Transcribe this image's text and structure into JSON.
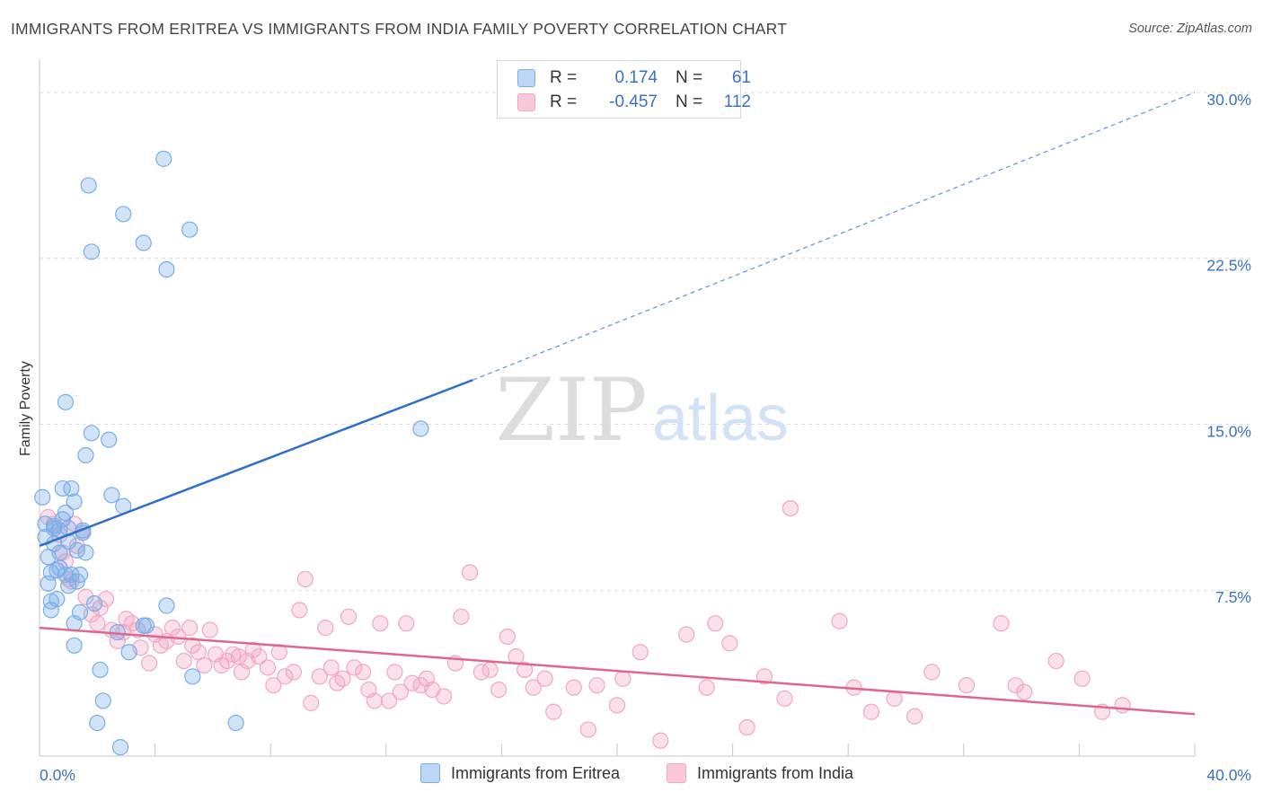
{
  "title": "IMMIGRANTS FROM ERITREA VS IMMIGRANTS FROM INDIA FAMILY POVERTY CORRELATION CHART",
  "source": "Source: ZipAtlas.com",
  "watermark": {
    "zip": "ZIP",
    "atlas": "atlas"
  },
  "legend_top": {
    "rows": [
      {
        "r_label": "R =",
        "r_value": "0.174",
        "n_label": "N =",
        "n_value": "61"
      },
      {
        "r_label": "R =",
        "r_value": "-0.457",
        "n_label": "N =",
        "n_value": "112"
      }
    ]
  },
  "chart_data": {
    "type": "scatter",
    "title": "IMMIGRANTS FROM ERITREA VS IMMIGRANTS FROM INDIA FAMILY POVERTY CORRELATION CHART",
    "xlabel": "",
    "ylabel": "Family Poverty",
    "xlim": [
      0,
      40
    ],
    "ylim": [
      0,
      31.5
    ],
    "x_tick_labels": [
      "0.0%",
      "40.0%"
    ],
    "y_ticks": [
      7.5,
      15.0,
      22.5,
      30.0
    ],
    "y_tick_labels": [
      "7.5%",
      "15.0%",
      "22.5%",
      "30.0%"
    ],
    "grid": true,
    "legend_position": "bottom",
    "series": [
      {
        "name": "Immigrants from Eritrea",
        "color": "#7aaee8",
        "line_color": "#2f6fc9",
        "r": 0.174,
        "n": 61,
        "trend": {
          "x0": 0,
          "y0": 9.5,
          "x_solid_end": 15.0,
          "y_solid_end": 17.0,
          "x1": 40,
          "y1": 30.0
        },
        "points": [
          [
            0.1,
            11.7
          ],
          [
            0.2,
            10.5
          ],
          [
            0.3,
            9.0
          ],
          [
            0.3,
            7.8
          ],
          [
            0.4,
            8.3
          ],
          [
            0.4,
            7.0
          ],
          [
            0.4,
            6.6
          ],
          [
            0.5,
            10.3
          ],
          [
            0.5,
            9.6
          ],
          [
            0.6,
            8.4
          ],
          [
            0.6,
            7.1
          ],
          [
            0.7,
            10.2
          ],
          [
            0.7,
            9.2
          ],
          [
            0.8,
            12.1
          ],
          [
            0.8,
            10.7
          ],
          [
            0.9,
            8.2
          ],
          [
            0.9,
            11.0
          ],
          [
            0.9,
            16.0
          ],
          [
            1.0,
            10.3
          ],
          [
            1.0,
            7.7
          ],
          [
            1.1,
            12.1
          ],
          [
            1.1,
            8.2
          ],
          [
            1.2,
            11.5
          ],
          [
            1.2,
            6.0
          ],
          [
            1.2,
            5.0
          ],
          [
            1.3,
            9.3
          ],
          [
            1.3,
            7.9
          ],
          [
            1.4,
            8.2
          ],
          [
            1.4,
            6.5
          ],
          [
            1.5,
            10.2
          ],
          [
            1.6,
            9.2
          ],
          [
            1.6,
            13.6
          ],
          [
            1.7,
            25.8
          ],
          [
            1.8,
            22.8
          ],
          [
            1.8,
            14.6
          ],
          [
            1.9,
            6.9
          ],
          [
            2.0,
            1.5
          ],
          [
            2.1,
            3.9
          ],
          [
            2.2,
            2.5
          ],
          [
            2.4,
            14.3
          ],
          [
            2.5,
            11.8
          ],
          [
            2.7,
            5.6
          ],
          [
            2.8,
            0.4
          ],
          [
            2.9,
            24.5
          ],
          [
            2.9,
            11.3
          ],
          [
            3.1,
            4.7
          ],
          [
            3.6,
            23.2
          ],
          [
            3.6,
            5.9
          ],
          [
            3.7,
            5.9
          ],
          [
            4.4,
            6.8
          ],
          [
            4.3,
            27.0
          ],
          [
            4.4,
            22.0
          ],
          [
            5.2,
            23.8
          ],
          [
            5.3,
            3.6
          ],
          [
            6.8,
            1.5
          ],
          [
            13.2,
            14.8
          ],
          [
            0.5,
            10.4
          ],
          [
            1.0,
            9.7
          ],
          [
            0.7,
            8.5
          ],
          [
            0.2,
            9.9
          ],
          [
            1.5,
            10.1
          ]
        ]
      },
      {
        "name": "Immigrants from India",
        "color": "#f2a7c3",
        "line_color": "#e0668f",
        "r": -0.457,
        "n": 112,
        "trend": {
          "x0": 0,
          "y0": 5.8,
          "x1": 40,
          "y1": 1.9
        },
        "points": [
          [
            0.3,
            10.8
          ],
          [
            0.5,
            10.5
          ],
          [
            0.7,
            10.0
          ],
          [
            0.8,
            9.2
          ],
          [
            0.9,
            8.8
          ],
          [
            1.0,
            8.0
          ],
          [
            1.2,
            10.5
          ],
          [
            1.3,
            9.5
          ],
          [
            1.5,
            10.1
          ],
          [
            1.6,
            7.2
          ],
          [
            1.8,
            6.4
          ],
          [
            2.0,
            6.0
          ],
          [
            2.1,
            6.7
          ],
          [
            2.3,
            7.1
          ],
          [
            2.5,
            5.7
          ],
          [
            2.7,
            5.2
          ],
          [
            2.9,
            5.6
          ],
          [
            3.2,
            6.0
          ],
          [
            3.4,
            5.7
          ],
          [
            3.5,
            4.9
          ],
          [
            3.8,
            4.2
          ],
          [
            4.0,
            5.5
          ],
          [
            4.2,
            5.0
          ],
          [
            4.4,
            5.2
          ],
          [
            4.6,
            5.8
          ],
          [
            4.8,
            5.4
          ],
          [
            5.0,
            4.3
          ],
          [
            5.2,
            5.8
          ],
          [
            5.3,
            5.0
          ],
          [
            5.5,
            4.7
          ],
          [
            5.7,
            4.1
          ],
          [
            5.9,
            5.7
          ],
          [
            6.1,
            4.6
          ],
          [
            6.3,
            4.1
          ],
          [
            6.5,
            4.3
          ],
          [
            6.7,
            4.6
          ],
          [
            6.9,
            4.5
          ],
          [
            7.0,
            3.8
          ],
          [
            7.2,
            4.3
          ],
          [
            7.4,
            4.8
          ],
          [
            7.6,
            4.5
          ],
          [
            7.9,
            4.0
          ],
          [
            8.1,
            3.2
          ],
          [
            8.3,
            4.7
          ],
          [
            8.5,
            3.6
          ],
          [
            8.8,
            3.8
          ],
          [
            9.0,
            6.6
          ],
          [
            9.2,
            8.0
          ],
          [
            9.4,
            2.4
          ],
          [
            9.7,
            3.6
          ],
          [
            9.9,
            5.8
          ],
          [
            10.1,
            4.0
          ],
          [
            10.3,
            3.3
          ],
          [
            10.5,
            3.5
          ],
          [
            10.7,
            6.3
          ],
          [
            10.9,
            4.0
          ],
          [
            11.2,
            3.8
          ],
          [
            11.4,
            3.0
          ],
          [
            11.6,
            2.5
          ],
          [
            11.8,
            6.0
          ],
          [
            12.1,
            2.5
          ],
          [
            12.3,
            3.8
          ],
          [
            12.5,
            2.9
          ],
          [
            12.7,
            6.0
          ],
          [
            12.9,
            3.3
          ],
          [
            13.2,
            3.2
          ],
          [
            13.4,
            3.5
          ],
          [
            13.6,
            3.0
          ],
          [
            14.0,
            2.7
          ],
          [
            14.4,
            4.2
          ],
          [
            14.6,
            6.3
          ],
          [
            14.9,
            8.3
          ],
          [
            15.3,
            3.8
          ],
          [
            15.6,
            3.9
          ],
          [
            15.9,
            3.0
          ],
          [
            16.2,
            5.4
          ],
          [
            16.5,
            4.5
          ],
          [
            16.8,
            3.9
          ],
          [
            17.1,
            3.1
          ],
          [
            17.5,
            3.5
          ],
          [
            17.8,
            2.0
          ],
          [
            18.5,
            3.1
          ],
          [
            19.0,
            1.2
          ],
          [
            19.3,
            3.2
          ],
          [
            20.0,
            2.3
          ],
          [
            20.2,
            3.5
          ],
          [
            20.8,
            4.7
          ],
          [
            21.5,
            0.7
          ],
          [
            22.4,
            5.5
          ],
          [
            23.1,
            3.1
          ],
          [
            23.4,
            6.0
          ],
          [
            23.9,
            5.1
          ],
          [
            24.5,
            1.3
          ],
          [
            25.1,
            3.6
          ],
          [
            25.8,
            2.6
          ],
          [
            26.0,
            11.2
          ],
          [
            27.7,
            6.1
          ],
          [
            28.2,
            3.1
          ],
          [
            28.8,
            2.0
          ],
          [
            29.6,
            2.6
          ],
          [
            30.3,
            1.8
          ],
          [
            30.9,
            3.8
          ],
          [
            32.1,
            3.2
          ],
          [
            33.3,
            6.0
          ],
          [
            33.8,
            3.2
          ],
          [
            34.1,
            2.9
          ],
          [
            35.2,
            4.3
          ],
          [
            36.1,
            3.5
          ],
          [
            36.8,
            2.0
          ],
          [
            37.5,
            2.3
          ],
          [
            1.1,
            7.9
          ],
          [
            3.0,
            6.2
          ]
        ]
      }
    ]
  }
}
